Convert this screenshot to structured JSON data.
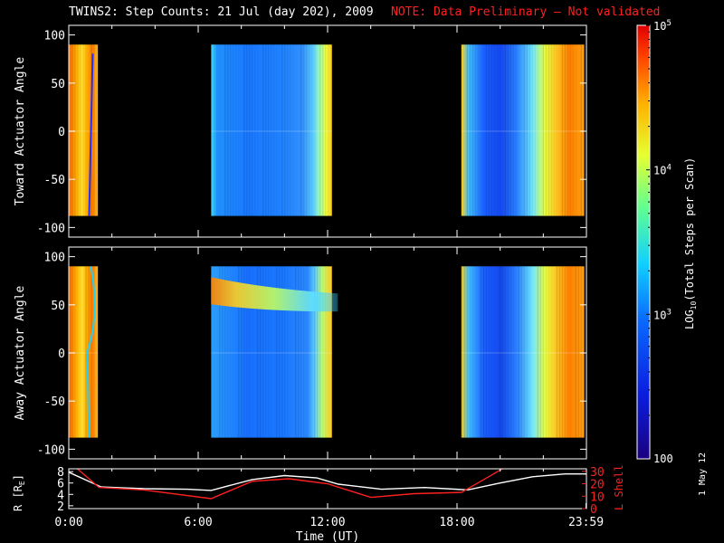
{
  "header": {
    "title": "TWINS2: Step Counts: 21 Jul (day 202), 2009",
    "note": "NOTE: Data Preliminary — Not validated"
  },
  "stamp": "1 May 12",
  "chart_data": [
    {
      "type": "heatmap",
      "name": "toward",
      "ylabel": "Toward Actuator Angle",
      "ylim": [
        -110,
        110
      ],
      "yticks": [
        "100",
        "50",
        "0",
        "-50",
        "-100"
      ],
      "ytick_values": [
        100,
        50,
        0,
        -50,
        -100
      ],
      "data_ylim": [
        -88,
        90
      ],
      "xlim": [
        0,
        24
      ],
      "data_blocks": [
        {
          "start": 0.02,
          "end": 1.35,
          "level": "high (>1e4, yellow-red)"
        },
        {
          "start": 6.6,
          "end": 12.2,
          "level": "low (~1e3, blue-cyan)"
        },
        {
          "start": 18.2,
          "end": 23.9,
          "level": "mixed (1e3-1e5)"
        }
      ]
    },
    {
      "type": "heatmap",
      "name": "away",
      "ylabel": "Away Actuator Angle",
      "ylim": [
        -110,
        110
      ],
      "yticks": [
        "100",
        "50",
        "0",
        "-50",
        "-100"
      ],
      "ytick_values": [
        100,
        50,
        0,
        -50,
        -100
      ],
      "data_ylim": [
        -88,
        90
      ],
      "xlim": [
        0,
        24
      ],
      "data_blocks": [
        {
          "start": 0.02,
          "end": 1.35,
          "level": "high (>1e4, yellow-red)"
        },
        {
          "start": 6.6,
          "end": 12.2,
          "level": "low (~1e3) with enhanced band near 70 deg"
        },
        {
          "start": 18.2,
          "end": 23.9,
          "level": "mixed (1e3-1e5)"
        }
      ]
    },
    {
      "type": "line",
      "name": "orbit",
      "ylabel_left": "R [R",
      "ylabel_left_sub": "E",
      "ylabel_left_end": "]",
      "ylabel_right": "L Shell",
      "left_ticks": [
        "8",
        "6",
        "4",
        "2"
      ],
      "left_tick_values": [
        8,
        6,
        4,
        2
      ],
      "left_ylim": [
        1.5,
        8.5
      ],
      "right_ticks": [
        "30",
        "20",
        "10",
        "0"
      ],
      "right_tick_values": [
        30,
        20,
        10,
        0
      ],
      "right_ylim": [
        0,
        32
      ],
      "xlabel": "Time (UT)",
      "xticks": [
        "0:00",
        "6:00",
        "12:00",
        "18:00",
        "23:59"
      ],
      "xtick_values": [
        0,
        6,
        12,
        18,
        23.98
      ],
      "xlim": [
        0,
        24
      ],
      "series": [
        {
          "name": "R",
          "color": "#ffffff",
          "axis": "left",
          "x": [
            0,
            1.5,
            3.5,
            5.5,
            6.6,
            8.5,
            10,
            11.5,
            12.5,
            14.5,
            16.5,
            18.5,
            20,
            21.5,
            23,
            24
          ],
          "y": [
            7.9,
            5.3,
            5.0,
            4.9,
            4.7,
            6.6,
            7.3,
            6.9,
            5.8,
            4.9,
            5.2,
            4.8,
            6.0,
            7.1,
            7.6,
            7.6
          ]
        },
        {
          "name": "L Shell",
          "color": "#ff2020",
          "axis": "right",
          "x": [
            0.4,
            1.4,
            3.5,
            6.6,
            8.5,
            10.2,
            12,
            14,
            16,
            18.2,
            19.5,
            20.1
          ],
          "y": [
            32,
            17,
            15,
            8,
            22,
            24,
            20,
            9,
            12,
            13,
            26,
            32
          ]
        }
      ]
    }
  ],
  "colorbar": {
    "label": "LOG",
    "label_sub": "10",
    "label_rest": "(Total Steps per Scan)",
    "tick_top_base": "10",
    "tick_top_exp": "5",
    "tick_mid_base": "10",
    "tick_mid_exp": "4",
    "tick_low_base": "10",
    "tick_low_exp": "3",
    "tick_bottom": "100",
    "range_log10": [
      2,
      5
    ]
  }
}
